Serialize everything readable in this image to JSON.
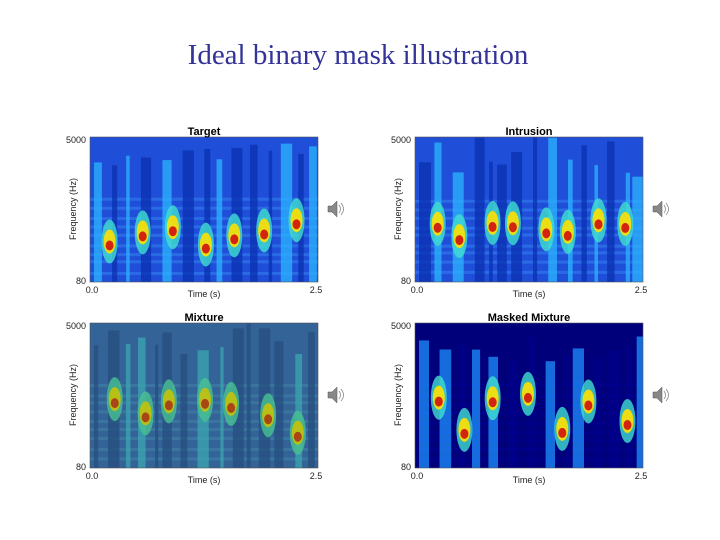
{
  "title": "Ideal binary mask illustration",
  "panels": [
    {
      "title": "Target",
      "y_label": "Frequency (Hz)",
      "x_label": "Time (s)",
      "y_ticks": [
        "5000",
        "80"
      ],
      "x_ticks": [
        "0.0",
        "2.5"
      ]
    },
    {
      "title": "Intrusion",
      "y_label": "Frequency (Hz)",
      "x_label": "Time (s)",
      "y_ticks": [
        "5000",
        "80"
      ],
      "x_ticks": [
        "0.0",
        "2.5"
      ]
    },
    {
      "title": "Mixture",
      "y_label": "Frequency (Hz)",
      "x_label": "Time (s)",
      "y_ticks": [
        "5000",
        "80"
      ],
      "x_ticks": [
        "0.0",
        "2.5"
      ]
    },
    {
      "title": "Masked Mixture",
      "y_label": "Frequency (Hz)",
      "x_label": "Time (s)",
      "y_ticks": [
        "5000",
        "80"
      ],
      "x_ticks": [
        "0.0",
        "2.5"
      ]
    }
  ]
}
